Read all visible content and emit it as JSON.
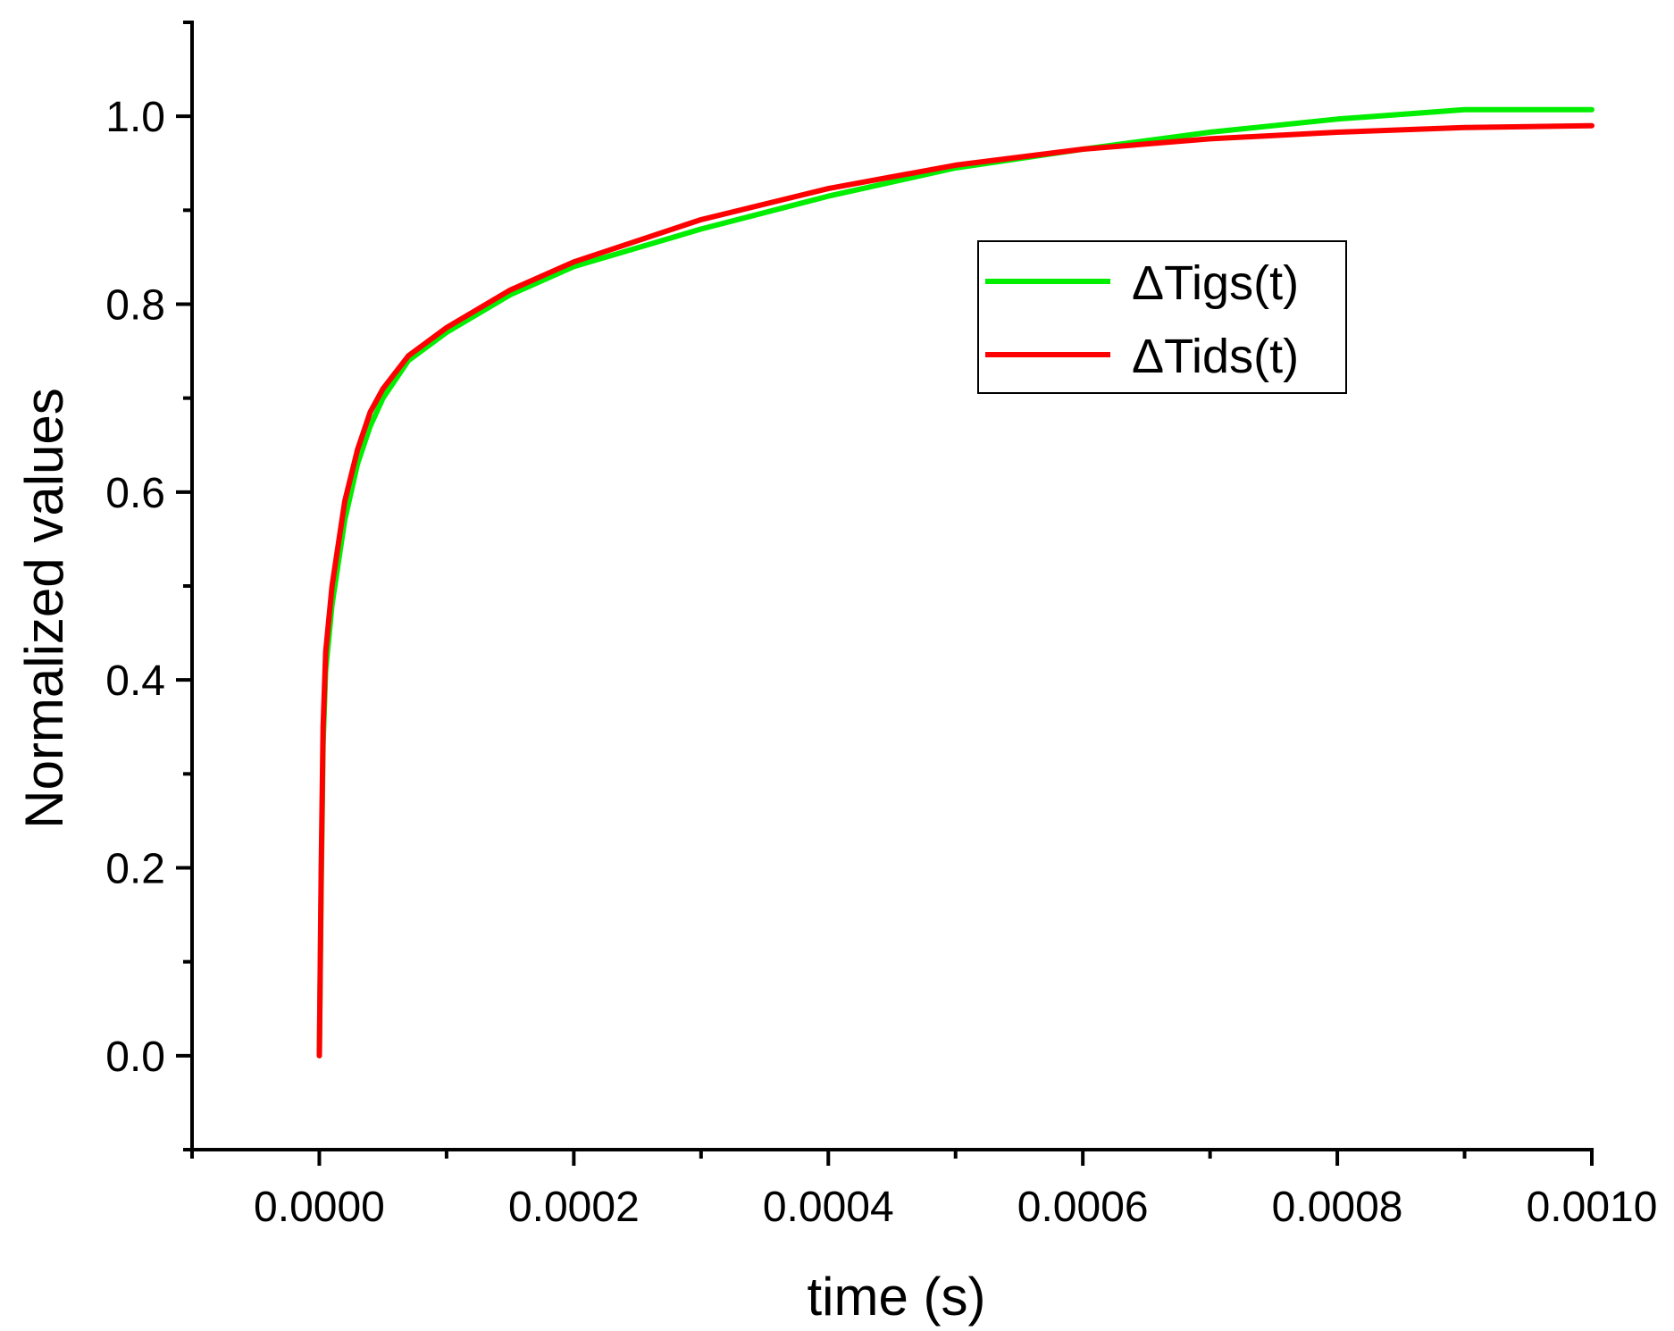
{
  "chart_data": {
    "type": "line",
    "title": "",
    "xlabel": "time (s)",
    "ylabel": "Normalized values",
    "xlim": [
      -0.0001,
      0.001
    ],
    "ylim": [
      -0.1,
      1.1
    ],
    "xticks": [
      0.0,
      0.0002,
      0.0004,
      0.0006,
      0.0008,
      0.001
    ],
    "xtick_labels": [
      "0.0000",
      "0.0002",
      "0.0004",
      "0.0006",
      "0.0008",
      "0.0010"
    ],
    "xminor": [
      -0.0001,
      0.0001,
      0.0003,
      0.0005,
      0.0007,
      0.0009
    ],
    "yticks": [
      0.0,
      0.2,
      0.4,
      0.6,
      0.8,
      1.0
    ],
    "ytick_labels": [
      "0.0",
      "0.2",
      "0.4",
      "0.6",
      "0.8",
      "1.0"
    ],
    "yminor": [
      -0.1,
      0.1,
      0.3,
      0.5,
      0.7,
      0.9,
      1.1
    ],
    "grid": false,
    "legend_position": "upper-right",
    "series": [
      {
        "name": "ΔTigs(t)",
        "color": "#00ee00",
        "x": [
          0.0,
          1.5e-06,
          3e-06,
          5e-06,
          1e-05,
          2e-05,
          3e-05,
          4e-05,
          5e-05,
          7e-05,
          0.0001,
          0.00015,
          0.0002,
          0.0003,
          0.0004,
          0.0005,
          0.0006,
          0.0007,
          0.0008,
          0.0009,
          0.001
        ],
        "y": [
          0.0,
          0.18,
          0.33,
          0.41,
          0.48,
          0.57,
          0.63,
          0.67,
          0.7,
          0.74,
          0.77,
          0.81,
          0.84,
          0.88,
          0.915,
          0.945,
          0.965,
          0.983,
          0.997,
          1.007,
          1.007
        ]
      },
      {
        "name": "ΔTids(t)",
        "color": "#ff0000",
        "x": [
          0.0,
          1.5e-06,
          3e-06,
          5e-06,
          1e-05,
          2e-05,
          3e-05,
          4e-05,
          5e-05,
          7e-05,
          0.0001,
          0.00015,
          0.0002,
          0.0003,
          0.0004,
          0.0005,
          0.0006,
          0.0007,
          0.0008,
          0.0009,
          0.001
        ],
        "y": [
          0.0,
          0.2,
          0.35,
          0.43,
          0.5,
          0.59,
          0.645,
          0.685,
          0.71,
          0.745,
          0.775,
          0.815,
          0.845,
          0.89,
          0.923,
          0.948,
          0.965,
          0.976,
          0.983,
          0.988,
          0.99
        ]
      }
    ]
  }
}
